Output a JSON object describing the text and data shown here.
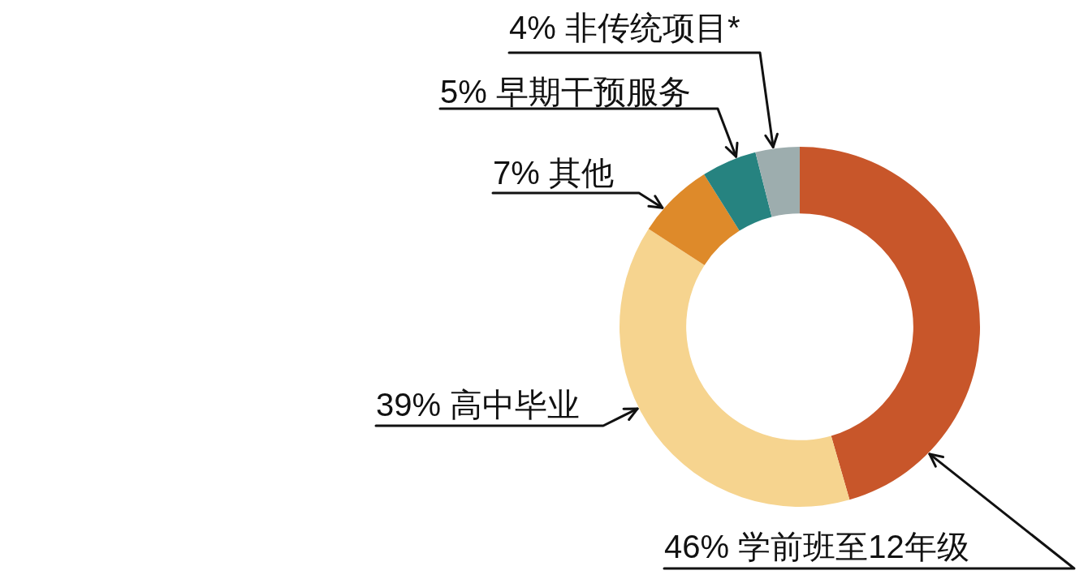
{
  "chart_data": {
    "type": "donut",
    "categories": [
      "学前班至12年级",
      "高中毕业",
      "其他",
      "早期干预服务",
      "非传统项目*"
    ],
    "values": [
      46,
      39,
      7,
      5,
      4
    ],
    "colors": [
      "#c8562a",
      "#f6d48f",
      "#de8a2a",
      "#268380",
      "#9dadae"
    ],
    "value_labels": [
      "46%",
      "39%",
      "7%",
      "5%",
      "4%"
    ]
  }
}
